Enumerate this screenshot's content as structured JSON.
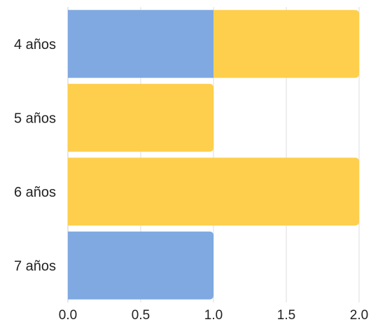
{
  "chart_data": {
    "type": "bar",
    "orientation": "horizontal",
    "stacked": true,
    "categories": [
      "4 años",
      "5 años",
      "6 años",
      "7 años"
    ],
    "series": [
      {
        "color": "#7fa9e0",
        "values": [
          1,
          0,
          0,
          1
        ]
      },
      {
        "color": "#fecf4d",
        "values": [
          1,
          1,
          2,
          0
        ]
      }
    ],
    "xlim": [
      0,
      2
    ],
    "xticks": [
      "0.0",
      "0.5",
      "1.0",
      "1.5",
      "2.0"
    ],
    "grid": true,
    "legend": "none"
  }
}
